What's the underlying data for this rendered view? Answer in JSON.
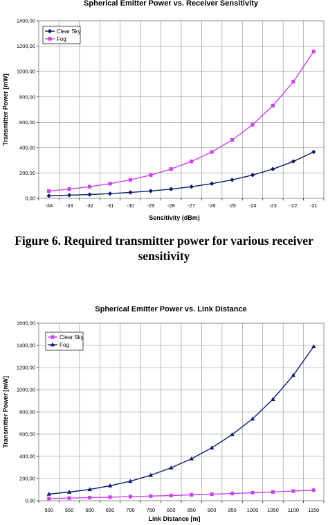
{
  "figure_caption": "Figure 6. Required transmitter power for various receiver sensitivity",
  "chart_data": [
    {
      "type": "line",
      "title": "Spherical Emitter Power vs. Receiver Sensitivity",
      "xlabel": "Sensitivity (dBm)",
      "ylabel": "Transmitter Power [mW]",
      "categories": [
        "-34",
        "-33",
        "-32",
        "-31",
        "-30",
        "-29",
        "-28",
        "-27",
        "-26",
        "-25",
        "-24",
        "-23",
        "-22",
        "-21"
      ],
      "ylim": [
        0,
        1400
      ],
      "yticks": [
        0,
        200,
        400,
        600,
        800,
        1000,
        1200,
        1400
      ],
      "ytick_labels": [
        "0,00",
        "200,00",
        "400,00",
        "600,00",
        "800,00",
        "1000,00",
        "1200,00",
        "1400,00"
      ],
      "grid": true,
      "legend_position": "top-left",
      "series": [
        {
          "name": "Clear Sky",
          "color": "#0a1a6e",
          "marker": "diamond",
          "values": [
            20,
            25,
            30,
            37,
            47,
            58,
            73,
            92,
            116,
            146,
            184,
            231,
            291,
            366
          ]
        },
        {
          "name": "Fog",
          "color": "#cc44ee",
          "marker": "square",
          "values": [
            58,
            73,
            92,
            116,
            146,
            184,
            231,
            291,
            366,
            461,
            580,
            731,
            920,
            1158
          ]
        }
      ]
    },
    {
      "type": "line",
      "title": "Spherical Emitter Power vs. Link Distance",
      "xlabel": "Link Distance [m]",
      "ylabel": "Transmitter Power [mW]",
      "categories": [
        "500",
        "550",
        "600",
        "650",
        "700",
        "750",
        "800",
        "850",
        "900",
        "950",
        "1000",
        "1050",
        "1100",
        "1150"
      ],
      "ylim": [
        0,
        1600
      ],
      "yticks": [
        0,
        200,
        400,
        600,
        800,
        1000,
        1200,
        1400,
        1600
      ],
      "ytick_labels": [
        "0,00",
        "200,00",
        "400,00",
        "600,00",
        "800,00",
        "1000,00",
        "1200,00",
        "1400,00",
        "1600,00"
      ],
      "grid": true,
      "legend_position": "top-left",
      "series": [
        {
          "name": "Clear Sky",
          "color": "#cc44ee",
          "marker": "square",
          "values": [
            20,
            24,
            28,
            32,
            37,
            42,
            47,
            53,
            59,
            65,
            72,
            79,
            87,
            95
          ]
        },
        {
          "name": "Fog",
          "color": "#0a1a6e",
          "marker": "triangle",
          "values": [
            60,
            78,
            102,
            135,
            176,
            230,
            297,
            378,
            477,
            596,
            738,
            915,
            1130,
            1390
          ]
        }
      ]
    }
  ]
}
